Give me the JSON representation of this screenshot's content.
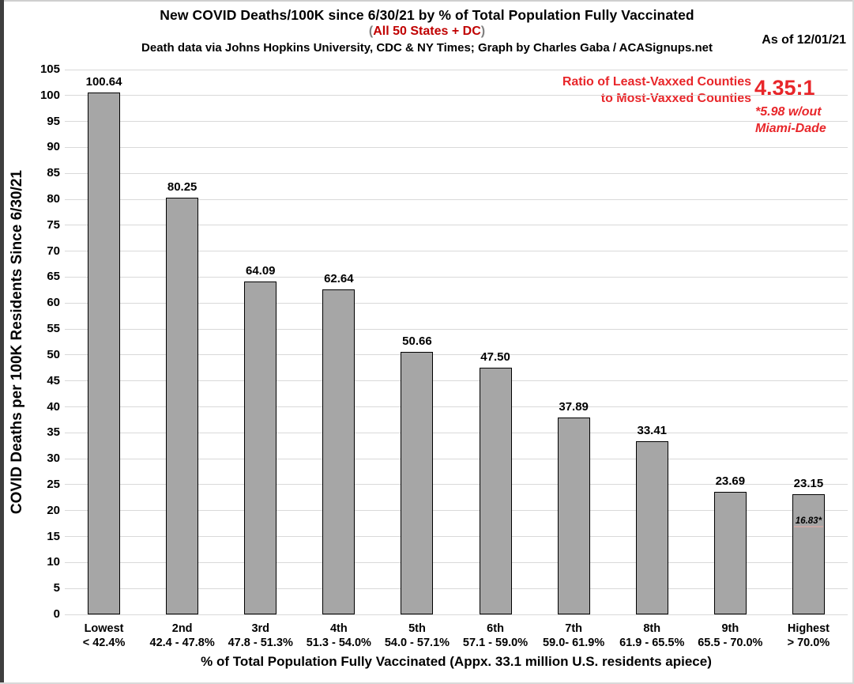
{
  "header": {
    "subtitle_paren_open": "(",
    "subtitle_paren_close": ")"
  },
  "chart_data": {
    "type": "bar",
    "title": "New COVID Deaths/100K since 6/30/21 by % of Total Population Fully Vaccinated",
    "subtitle": "All 50 States + DC",
    "source_note": "Death data via Johns Hopkins University, CDC & NY Times; Graph by Charles Gaba / ACASignups.net",
    "as_of": "As of 12/01/21",
    "categories": [
      "Lowest",
      "2nd",
      "3rd",
      "4th",
      "5th",
      "6th",
      "7th",
      "8th",
      "9th",
      "Highest"
    ],
    "category_ranges": [
      "< 42.4%",
      "42.4 - 47.8%",
      "47.8 - 51.3%",
      "51.3 - 54.0%",
      "54.0 - 57.1%",
      "57.1 - 59.0%",
      "59.0- 61.9%",
      "61.9 - 65.5%",
      "65.5 - 70.0%",
      "> 70.0%"
    ],
    "values": [
      100.64,
      80.25,
      64.09,
      62.64,
      50.66,
      47.5,
      37.89,
      33.41,
      23.69,
      23.15
    ],
    "value_labels": [
      "100.64",
      "80.25",
      "64.09",
      "62.64",
      "50.66",
      "47.50",
      "37.89",
      "33.41",
      "23.69",
      "23.15"
    ],
    "xlabel": "% of Total Population Fully Vaccinated (Appx. 33.1 million U.S. residents apiece)",
    "ylabel": "COVID Deaths per 100K Residents Since 6/30/21",
    "ylim": [
      0,
      105
    ],
    "ytick_step": 5,
    "grid": true,
    "legend": "none",
    "bar_color": "#a6a6a6",
    "bar_border_color": "#000000",
    "annotations": {
      "ratio_label_line1": "Ratio of Least-Vaxxed Counties",
      "ratio_label_line2": "to Most-Vaxxed Counties",
      "ratio_value": "4.35:1",
      "ratio_footnote_line1": "*5.98 w/out",
      "ratio_footnote_line2": "Miami-Dade",
      "inner_bar_note": {
        "bar_index": 9,
        "label": "16.83*",
        "value": 16.83
      }
    },
    "colors": {
      "subtitle_red": "#c00000",
      "annotation_red": "#e8262a",
      "grid_gray": "#d9d9d9",
      "bar_gray": "#a6a6a6",
      "inner_note_line": "#c9a8a4"
    }
  }
}
